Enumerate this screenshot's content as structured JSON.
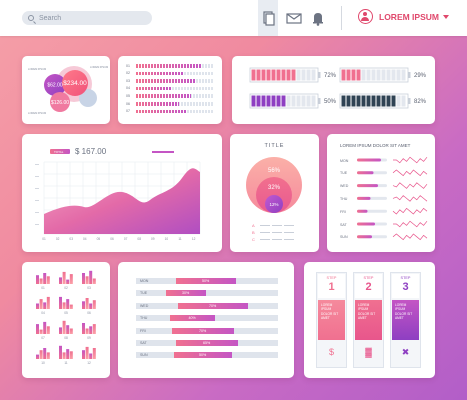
{
  "header": {
    "search_placeholder": "Search",
    "user_name": "LOREM IPSUM",
    "icons": [
      "document-icon",
      "mail-icon",
      "bell-icon",
      "user-icon"
    ]
  },
  "bubbles": {
    "values": [
      "$62.00",
      "$234.00",
      "$126.00"
    ],
    "small_labels": [
      "LOREM IPSUM",
      "LOREM IPSUM",
      "LOREM IPSUM"
    ]
  },
  "rows_panel": {
    "labels": [
      "01",
      "02",
      "03",
      "04",
      "05",
      "06",
      "07"
    ]
  },
  "battery": {
    "values": [
      "72%",
      "29%",
      "50%",
      "82%"
    ]
  },
  "area_chart": {
    "badge": "TOTAL",
    "value": "$ 167.00",
    "x_labels": [
      "01",
      "02",
      "03",
      "04",
      "05",
      "06",
      "07",
      "08",
      "09",
      "10",
      "11",
      "12"
    ]
  },
  "venn": {
    "title": "TITLE",
    "values": [
      "56%",
      "32%",
      "12%"
    ],
    "legend": [
      "A",
      "B",
      "C"
    ]
  },
  "wave_panel": {
    "title": "LOREM IPSUM DOLOR SIT AMET",
    "days": [
      "MON",
      "TUE",
      "WED",
      "THU",
      "FRI",
      "SAT",
      "SUN"
    ]
  },
  "mini_bars": {
    "labels": [
      "01",
      "02",
      "03",
      "04",
      "05",
      "06",
      "07",
      "08",
      "09",
      "10",
      "11",
      "12"
    ]
  },
  "percent_bars": {
    "rows": [
      {
        "day": "MON",
        "value": "50%"
      },
      {
        "day": "TUE",
        "value": "30%"
      },
      {
        "day": "WED",
        "value": "70%"
      },
      {
        "day": "THU",
        "value": "40%"
      },
      {
        "day": "FRI",
        "value": "70%"
      },
      {
        "day": "SAT",
        "value": "65%"
      },
      {
        "day": "SUN",
        "value": "50%"
      }
    ]
  },
  "steps": {
    "items": [
      {
        "label": "STEP",
        "num": "1",
        "text": "LOREM IPSUM DOLOR SIT AMET",
        "icon": "money-bag-icon"
      },
      {
        "label": "STEP",
        "num": "2",
        "text": "LOREM IPSUM DOLOR SIT AMET",
        "icon": "factory-icon"
      },
      {
        "label": "STEP",
        "num": "3",
        "text": "LOREM IPSUM DOLOR SIT AMET",
        "icon": "tools-icon"
      }
    ]
  }
}
